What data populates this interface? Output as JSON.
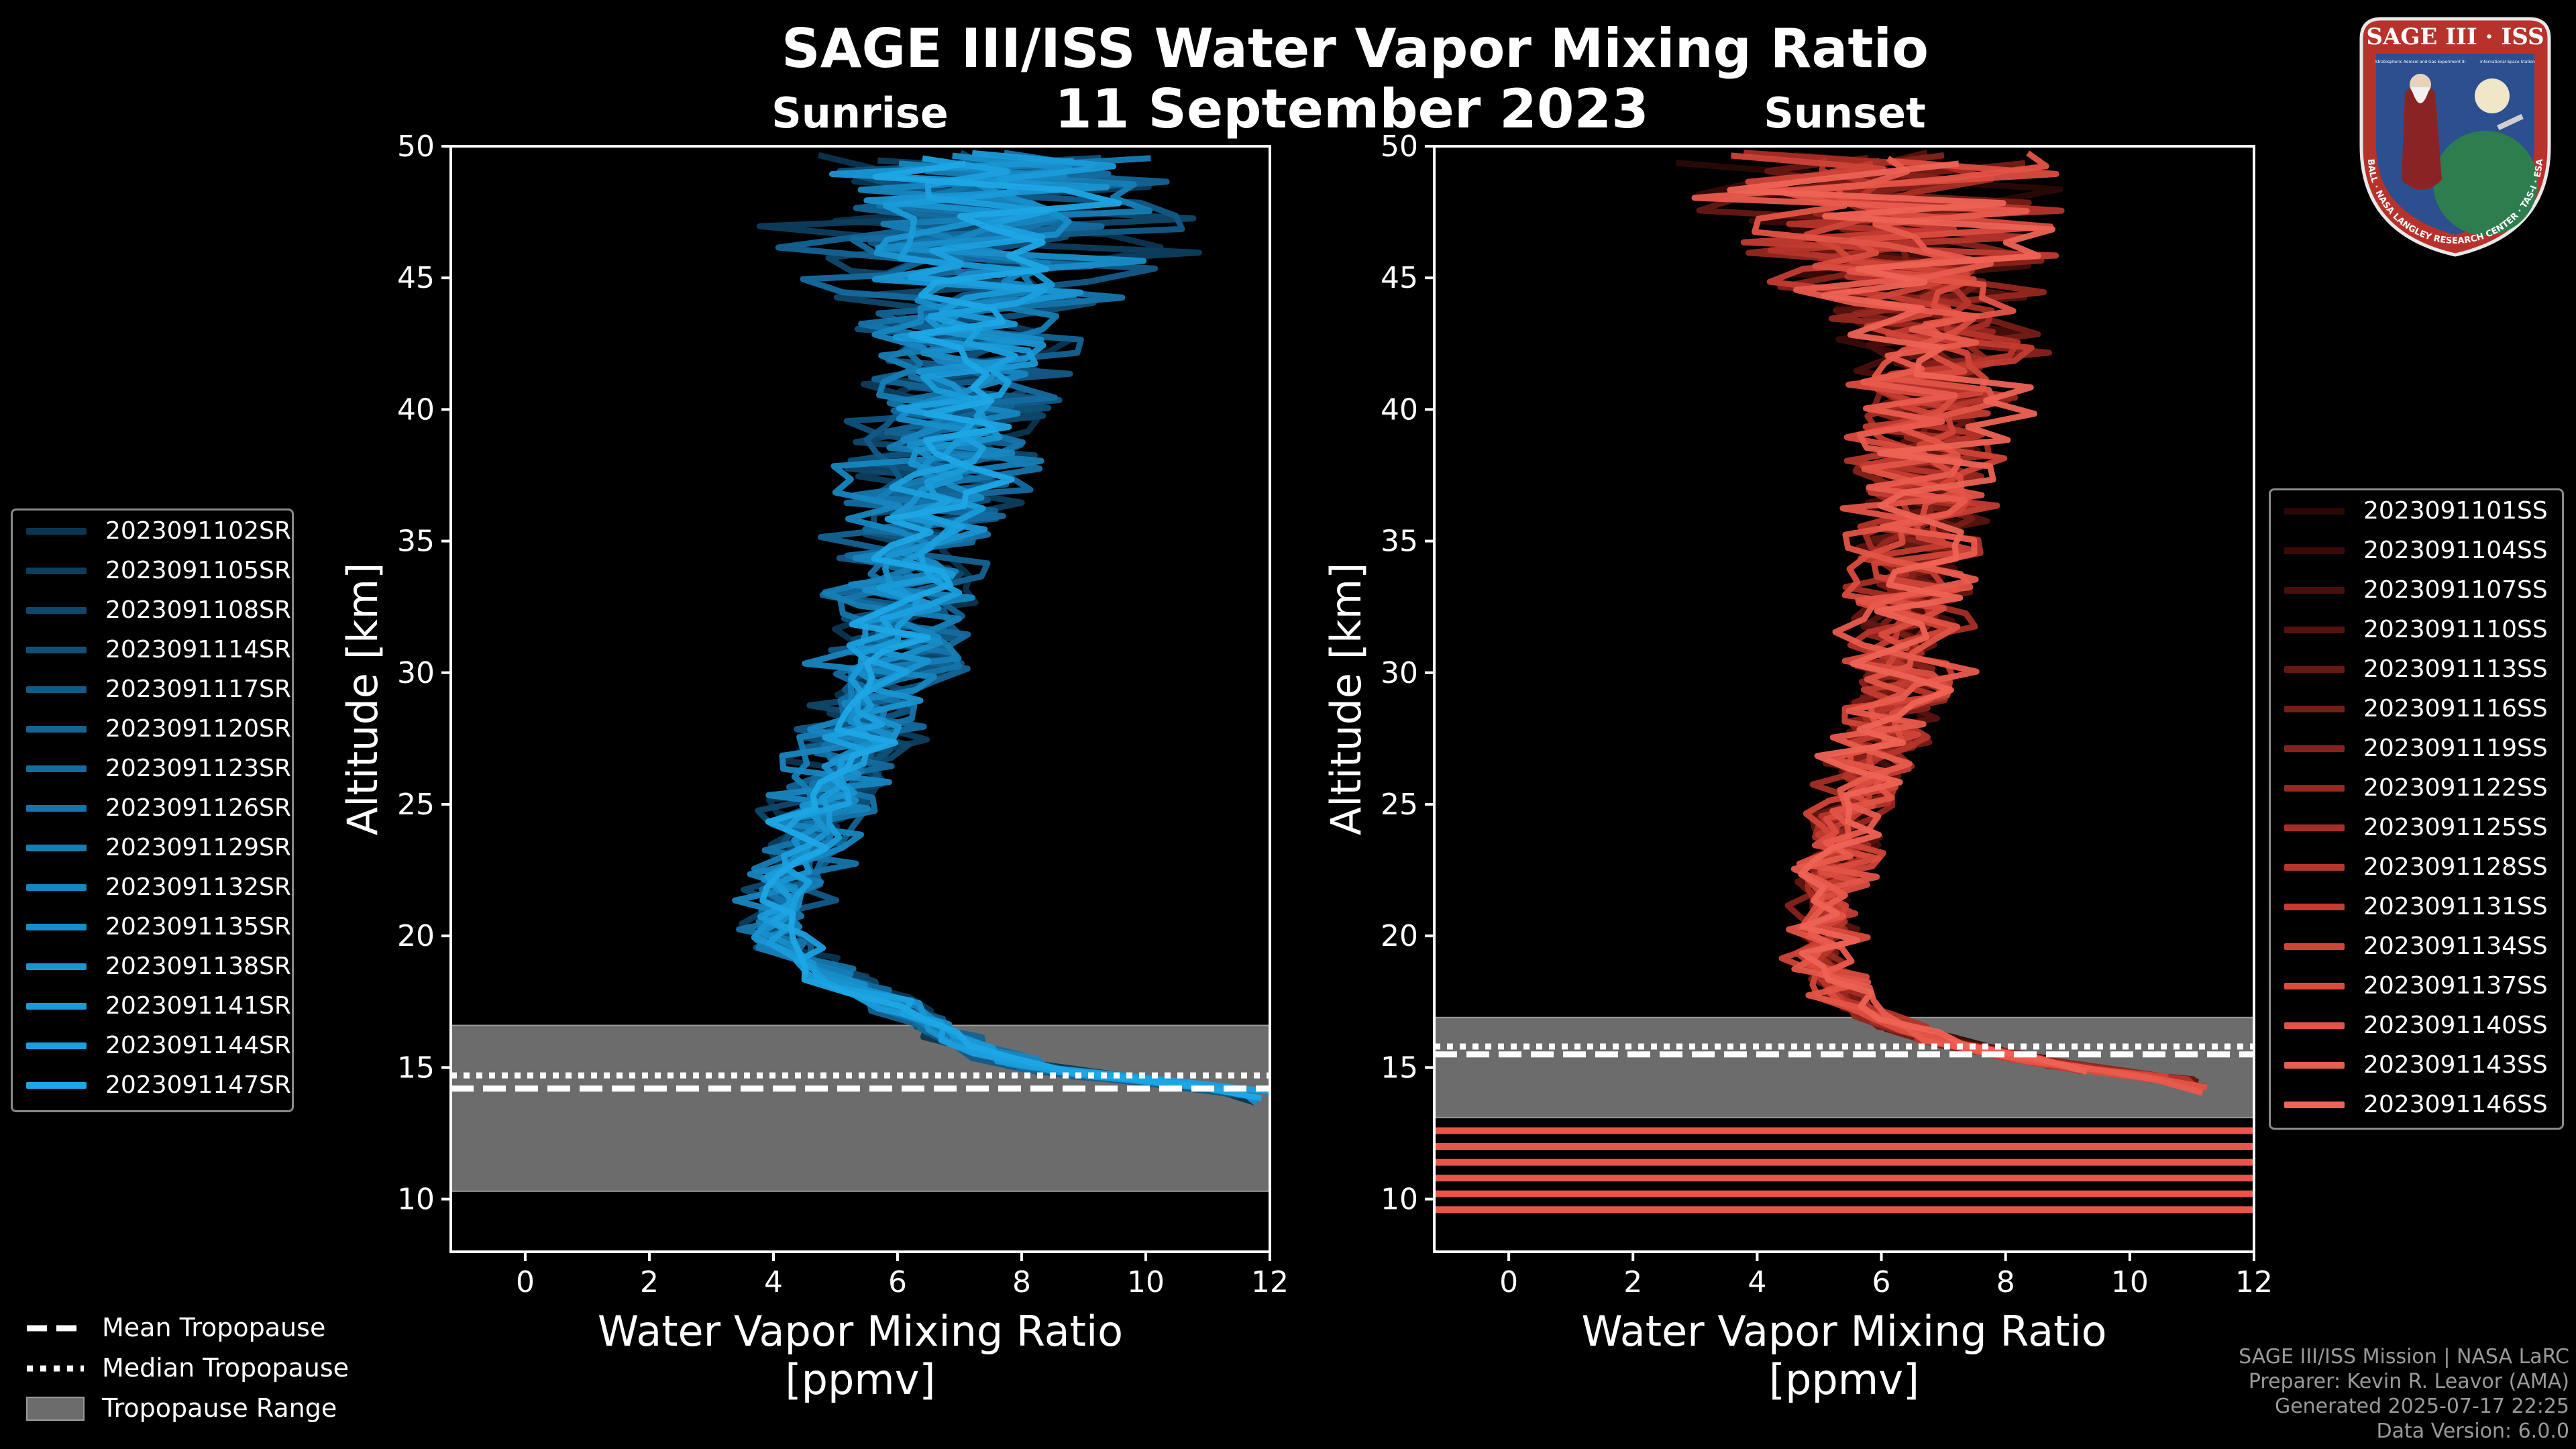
{
  "header": {
    "title": "SAGE III/ISS Water Vapor Mixing Ratio",
    "date": "11 September 2023",
    "left_subtitle": "Sunrise",
    "right_subtitle": "Sunset"
  },
  "logo": {
    "title": "SAGE III · ISS",
    "ring_text": "BALL · NASA LANGLEY RESEARCH CENTER · TAS-I · ESA",
    "inner_text_left": "Stratospheric Aerosol and Gas Experiment III",
    "inner_text_right": "International Space Station",
    "ring_color": "#b8322c",
    "background_color": "#2b4f8f"
  },
  "chart_data": [
    {
      "type": "line",
      "panel": "Sunrise",
      "xlabel": "Water Vapor Mixing Ratio\n[ppmv]",
      "ylabel": "Altitude [km]",
      "xlim": [
        -1.2,
        12
      ],
      "ylim": [
        8,
        50
      ],
      "xticks": [
        0,
        2,
        4,
        6,
        8,
        10,
        12
      ],
      "yticks": [
        10,
        15,
        20,
        25,
        30,
        35,
        40,
        45,
        50
      ],
      "tropopause_range": [
        10.3,
        16.6
      ],
      "mean_tropopause": 14.2,
      "median_tropopause": 14.7,
      "base_color": "#1a8fd6",
      "profile_shape": [
        [
          14.0,
          12.0
        ],
        [
          15.0,
          8.0
        ],
        [
          16.0,
          7.0
        ],
        [
          17.0,
          6.3
        ],
        [
          18.0,
          5.3
        ],
        [
          19.0,
          4.5
        ],
        [
          20.0,
          4.0
        ],
        [
          22.0,
          4.2
        ],
        [
          25.0,
          4.8
        ],
        [
          28.0,
          5.4
        ],
        [
          30.0,
          5.9
        ],
        [
          33.0,
          6.2
        ],
        [
          36.0,
          6.5
        ],
        [
          39.0,
          6.9
        ],
        [
          42.0,
          7.2
        ],
        [
          45.0,
          7.4
        ],
        [
          48.0,
          7.5
        ],
        [
          49.8,
          7.5
        ]
      ],
      "series": [
        {
          "name": "2023091102SR",
          "color": "#0b3550"
        },
        {
          "name": "2023091105SR",
          "color": "#0d3e5e"
        },
        {
          "name": "2023091108SR",
          "color": "#0f486c"
        },
        {
          "name": "2023091114SR",
          "color": "#10517a"
        },
        {
          "name": "2023091117SR",
          "color": "#125a87"
        },
        {
          "name": "2023091120SR",
          "color": "#136393"
        },
        {
          "name": "2023091123SR",
          "color": "#146c9f"
        },
        {
          "name": "2023091126SR",
          "color": "#1575ab"
        },
        {
          "name": "2023091129SR",
          "color": "#167eb6"
        },
        {
          "name": "2023091132SR",
          "color": "#1786c0"
        },
        {
          "name": "2023091135SR",
          "color": "#188ec9"
        },
        {
          "name": "2023091138SR",
          "color": "#1995d2"
        },
        {
          "name": "2023091141SR",
          "color": "#1a9bd9"
        },
        {
          "name": "2023091144SR",
          "color": "#1ba0df"
        },
        {
          "name": "2023091147SR",
          "color": "#1ea6e6"
        }
      ]
    },
    {
      "type": "line",
      "panel": "Sunset",
      "xlabel": "Water Vapor Mixing Ratio\n[ppmv]",
      "ylabel": "Altitude [km]",
      "xlim": [
        -1.2,
        12
      ],
      "ylim": [
        8,
        50
      ],
      "xticks": [
        0,
        2,
        4,
        6,
        8,
        10,
        12
      ],
      "yticks": [
        10,
        15,
        20,
        25,
        30,
        35,
        40,
        45,
        50
      ],
      "tropopause_range": [
        13.1,
        16.9
      ],
      "mean_tropopause": 15.5,
      "median_tropopause": 15.8,
      "base_color": "#e8564a",
      "low_altitude_bands": [
        9.6,
        10.2,
        10.8,
        11.4,
        12.0,
        12.6
      ],
      "profile_shape": [
        [
          14.5,
          11.0
        ],
        [
          15.0,
          9.0
        ],
        [
          16.0,
          7.0
        ],
        [
          17.0,
          5.8
        ],
        [
          18.0,
          5.2
        ],
        [
          19.0,
          5.0
        ],
        [
          20.0,
          5.1
        ],
        [
          22.0,
          5.2
        ],
        [
          25.0,
          5.6
        ],
        [
          28.0,
          6.1
        ],
        [
          30.0,
          6.4
        ],
        [
          33.0,
          6.5
        ],
        [
          36.0,
          6.6
        ],
        [
          39.0,
          6.8
        ],
        [
          42.0,
          7.0
        ],
        [
          45.0,
          6.5
        ],
        [
          48.0,
          6.0
        ],
        [
          49.8,
          6.0
        ]
      ],
      "series": [
        {
          "name": "2023091101SS",
          "color": "#2a0806"
        },
        {
          "name": "2023091104SS",
          "color": "#380b08"
        },
        {
          "name": "2023091107SS",
          "color": "#470f0b"
        },
        {
          "name": "2023091110SS",
          "color": "#56130e"
        },
        {
          "name": "2023091113SS",
          "color": "#661812"
        },
        {
          "name": "2023091116SS",
          "color": "#761d16"
        },
        {
          "name": "2023091119SS",
          "color": "#86221b"
        },
        {
          "name": "2023091122SS",
          "color": "#962820"
        },
        {
          "name": "2023091125SS",
          "color": "#a62e25"
        },
        {
          "name": "2023091128SS",
          "color": "#b5352b"
        },
        {
          "name": "2023091131SS",
          "color": "#c33c31"
        },
        {
          "name": "2023091134SS",
          "color": "#d04438"
        },
        {
          "name": "2023091137SS",
          "color": "#db4c3f"
        },
        {
          "name": "2023091140SS",
          "color": "#e35446"
        },
        {
          "name": "2023091143SS",
          "color": "#e95b4d"
        },
        {
          "name": "2023091146SS",
          "color": "#ee6354"
        }
      ]
    }
  ],
  "bottom_legend": {
    "mean": "Mean Tropopause",
    "median": "Median Tropopause",
    "range": "Tropopause Range",
    "range_color": "#6c6c6c"
  },
  "credits": {
    "line1": "SAGE III/ISS Mission | NASA LaRC",
    "line2": "Preparer: Kevin R. Leavor (AMA)",
    "line3": "Generated 2025-07-17 22:25",
    "line4": "Data Version: 6.0.0"
  }
}
